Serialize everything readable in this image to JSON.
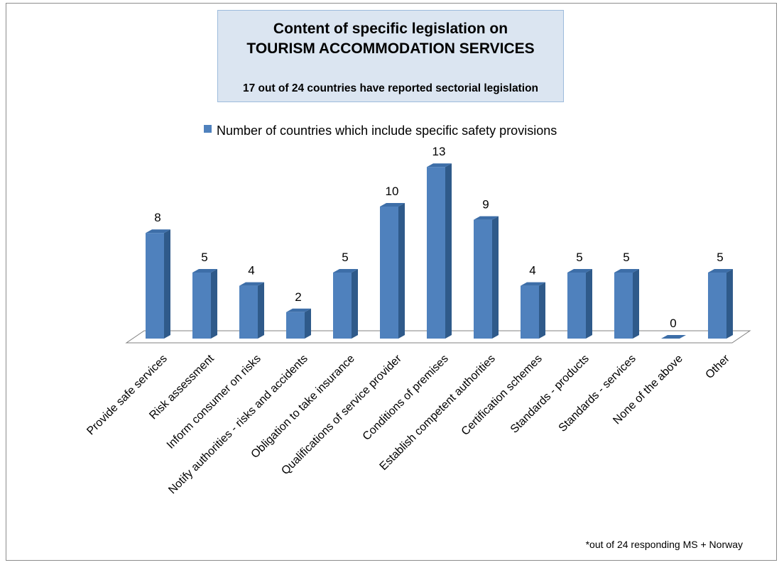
{
  "footnote": "*out of 24 responding MS + Norway",
  "chart_data": {
    "type": "bar",
    "title": "Content of  specific legislation on",
    "title_line2": "TOURISM ACCOMMODATION SERVICES",
    "subtitle": "17 out of 24 countries have reported sectorial legislation",
    "legend_position": "top",
    "grid": false,
    "ylim": [
      0,
      14
    ],
    "categories": [
      "Provide safe services",
      "Risk assessment",
      "Inform consumer on risks",
      "Notify authorities - risks and accidents",
      "Obligation to take insurance",
      "Qualifications of service provider",
      "Conditions of premises",
      "Establish competent authorities",
      "Certification schemes",
      "Standards - products",
      "Standards - services",
      "None of the above",
      "Other"
    ],
    "series": [
      {
        "name": "Number of countries which include specific safety provisions",
        "color": "#4f81bd",
        "values": [
          8,
          5,
          4,
          2,
          5,
          10,
          13,
          9,
          4,
          5,
          5,
          0,
          5
        ]
      }
    ]
  }
}
